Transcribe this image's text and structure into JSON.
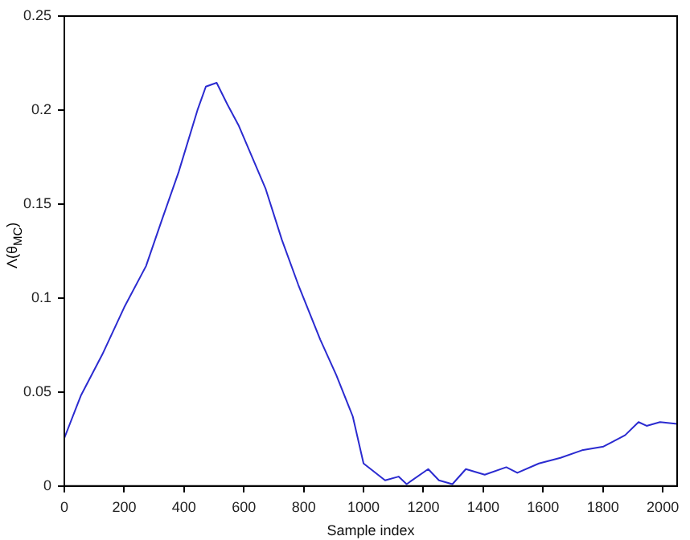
{
  "chart_data": {
    "type": "line",
    "xlabel": "Sample index",
    "ylabel": "Λ(θ$_{MC}$)",
    "x": [
      0,
      55,
      127,
      200,
      273,
      327,
      382,
      445,
      473,
      509,
      545,
      582,
      673,
      727,
      782,
      855,
      909,
      964,
      1000,
      1072,
      1117,
      1144,
      1216,
      1252,
      1297,
      1342,
      1405,
      1477,
      1514,
      1586,
      1658,
      1730,
      1802,
      1874,
      1919,
      1946,
      1991,
      2048
    ],
    "series": [
      {
        "color": "#2b2bd0",
        "values": [
          0.0255,
          0.048,
          0.07,
          0.095,
          0.117,
          0.142,
          0.167,
          0.2,
          0.2125,
          0.2145,
          0.203,
          0.192,
          0.158,
          0.131,
          0.107,
          0.078,
          0.059,
          0.037,
          0.012,
          0.003,
          0.005,
          0.001,
          0.009,
          0.003,
          0.001,
          0.009,
          0.006,
          0.01,
          0.007,
          0.012,
          0.015,
          0.019,
          0.021,
          0.027,
          0.034,
          0.032,
          0.034,
          0.033
        ]
      }
    ],
    "xlim": [
      0,
      2048
    ],
    "xticks": [
      0,
      200,
      400,
      600,
      800,
      1000,
      1200,
      1400,
      1600,
      1800,
      2000
    ],
    "ylim": [
      0,
      0.25
    ],
    "yticks": [
      0,
      0.05,
      0.1,
      0.15,
      0.2,
      0.25
    ],
    "grid": false,
    "legend": false,
    "marker": "none",
    "line_style": "solid"
  }
}
